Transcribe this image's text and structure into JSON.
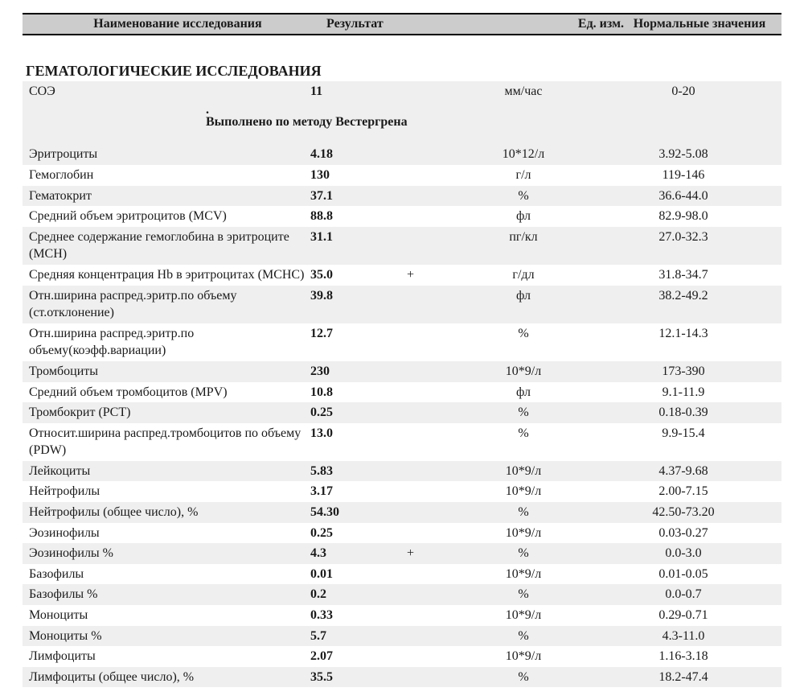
{
  "header": {
    "name": "Наименование исследования",
    "result": "Результат",
    "unit": "Ед. изм.",
    "ref": "Нормальные значения"
  },
  "section_title": "ГЕМАТОЛОГИЧЕСКИЕ ИССЛЕДОВАНИЯ",
  "method_note": "Выполнено по методу Вестергрена",
  "dot": ".",
  "rows": [
    {
      "name": "СОЭ",
      "result": "11",
      "flag": "",
      "unit": "мм/час",
      "ref": "0-20",
      "shade": true
    },
    {
      "name": "Эритроциты",
      "result": "4.18",
      "flag": "",
      "unit": "10*12/л",
      "ref": "3.92-5.08",
      "shade": true
    },
    {
      "name": "Гемоглобин",
      "result": "130",
      "flag": "",
      "unit": "г/л",
      "ref": "119-146",
      "shade": false
    },
    {
      "name": "Гематокрит",
      "result": "37.1",
      "flag": "",
      "unit": "%",
      "ref": "36.6-44.0",
      "shade": true
    },
    {
      "name": "Средний объем эритроцитов (MCV)",
      "result": "88.8",
      "flag": "",
      "unit": "фл",
      "ref": "82.9-98.0",
      "shade": false
    },
    {
      "name": "Среднее содержание гемоглобина в эритроците (MCH)",
      "result": "31.1",
      "flag": "",
      "unit": "пг/кл",
      "ref": "27.0-32.3",
      "shade": true
    },
    {
      "name": "Средняя концентрация Hb в эритроцитах (MCHC)",
      "result": "35.0",
      "flag": "+",
      "unit": "г/дл",
      "ref": "31.8-34.7",
      "shade": false
    },
    {
      "name": "Отн.ширина распред.эритр.по объему (ст.отклонение)",
      "result": "39.8",
      "flag": "",
      "unit": "фл",
      "ref": "38.2-49.2",
      "shade": true
    },
    {
      "name": "Отн.ширина распред.эритр.по объему(коэфф.вариации)",
      "result": "12.7",
      "flag": "",
      "unit": "%",
      "ref": "12.1-14.3",
      "shade": false
    },
    {
      "name": "Тромбоциты",
      "result": "230",
      "flag": "",
      "unit": "10*9/л",
      "ref": "173-390",
      "shade": true
    },
    {
      "name": "Средний объем тромбоцитов (MPV)",
      "result": "10.8",
      "flag": "",
      "unit": "фл",
      "ref": "9.1-11.9",
      "shade": false
    },
    {
      "name": "Тромбокрит (PCT)",
      "result": "0.25",
      "flag": "",
      "unit": "%",
      "ref": "0.18-0.39",
      "shade": true
    },
    {
      "name": "Относит.ширина распред.тромбоцитов по объему (PDW)",
      "result": "13.0",
      "flag": "",
      "unit": "%",
      "ref": "9.9-15.4",
      "shade": false
    },
    {
      "name": "Лейкоциты",
      "result": "5.83",
      "flag": "",
      "unit": "10*9/л",
      "ref": "4.37-9.68",
      "shade": true
    },
    {
      "name": "Нейтрофилы",
      "result": "3.17",
      "flag": "",
      "unit": "10*9/л",
      "ref": "2.00-7.15",
      "shade": false
    },
    {
      "name": "Нейтрофилы (общее число), %",
      "result": "54.30",
      "flag": "",
      "unit": "%",
      "ref": "42.50-73.20",
      "shade": true
    },
    {
      "name": "Эозинофилы",
      "result": "0.25",
      "flag": "",
      "unit": "10*9/л",
      "ref": "0.03-0.27",
      "shade": false
    },
    {
      "name": "Эозинофилы %",
      "result": "4.3",
      "flag": "+",
      "unit": "%",
      "ref": "0.0-3.0",
      "shade": true
    },
    {
      "name": "Базофилы",
      "result": "0.01",
      "flag": "",
      "unit": "10*9/л",
      "ref": "0.01-0.05",
      "shade": false
    },
    {
      "name": "Базофилы %",
      "result": "0.2",
      "flag": "",
      "unit": "%",
      "ref": "0.0-0.7",
      "shade": true
    },
    {
      "name": "Моноциты",
      "result": "0.33",
      "flag": "",
      "unit": "10*9/л",
      "ref": "0.29-0.71",
      "shade": false
    },
    {
      "name": "Моноциты %",
      "result": "5.7",
      "flag": "",
      "unit": "%",
      "ref": "4.3-11.0",
      "shade": true
    },
    {
      "name": "Лимфоциты",
      "result": "2.07",
      "flag": "",
      "unit": "10*9/л",
      "ref": "1.16-3.18",
      "shade": false
    },
    {
      "name": "Лимфоциты (общее число), %",
      "result": "35.5",
      "flag": "",
      "unit": "%",
      "ref": "18.2-47.4",
      "shade": true
    }
  ]
}
